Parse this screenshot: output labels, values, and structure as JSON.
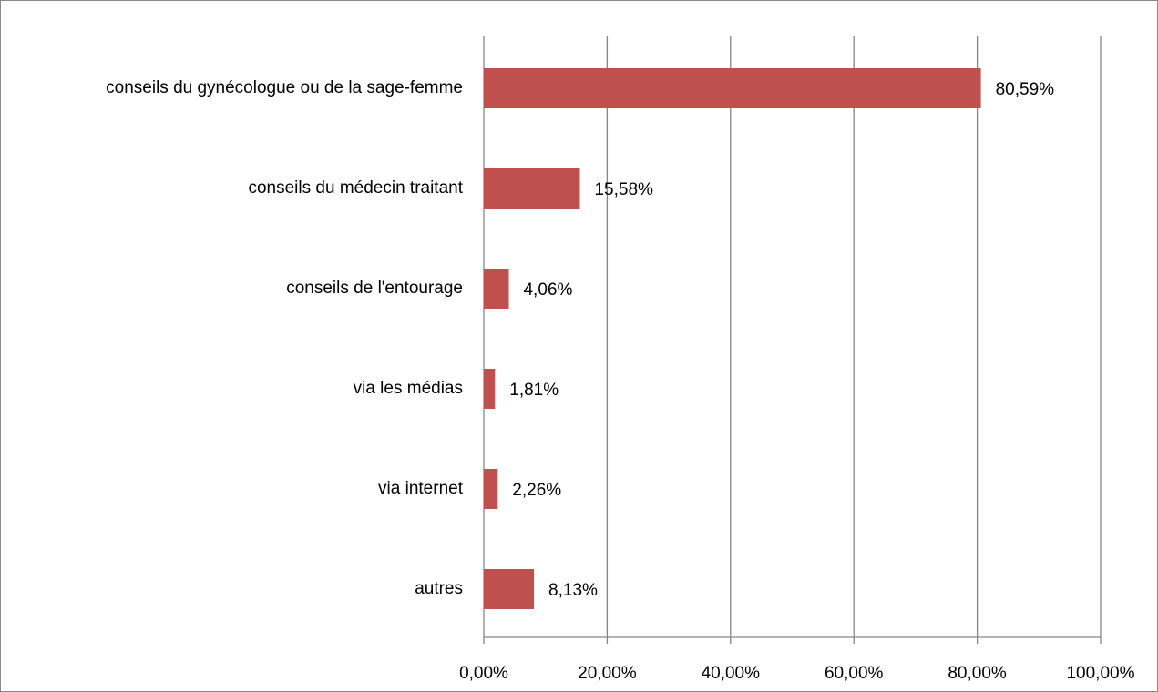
{
  "chart_data": {
    "type": "bar",
    "orientation": "horizontal",
    "categories": [
      "conseils du gynécologue ou de la sage-femme",
      "conseils du médecin traitant",
      "conseils de l'entourage",
      "via les médias",
      "via internet",
      "autres"
    ],
    "values": [
      80.59,
      15.58,
      4.06,
      1.81,
      2.26,
      8.13
    ],
    "value_labels": [
      "80,59%",
      "15,58%",
      "4,06%",
      "1,81%",
      "2,26%",
      "8,13%"
    ],
    "color": "#c0504d",
    "xlim": [
      0,
      100
    ],
    "xticks": [
      {
        "value": 0,
        "label": "0,00%"
      },
      {
        "value": 20,
        "label": "20,00%"
      },
      {
        "value": 40,
        "label": "40,00%"
      },
      {
        "value": 60,
        "label": "60,00%"
      },
      {
        "value": 80,
        "label": "80,00%"
      },
      {
        "value": 100,
        "label": "100,00%"
      }
    ],
    "grid": true
  }
}
